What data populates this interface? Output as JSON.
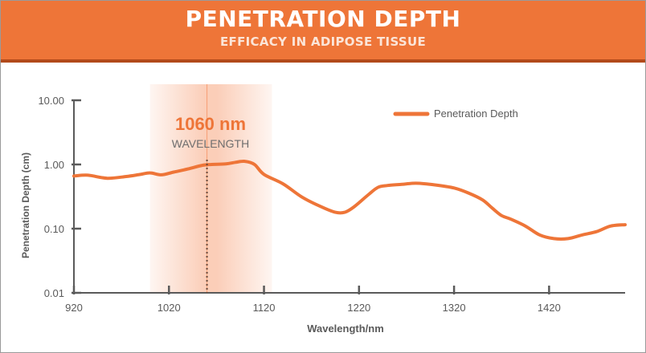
{
  "header": {
    "title": "PENETRATION DEPTH",
    "subtitle": "EFFICACY IN ADIPOSE TISSUE"
  },
  "colors": {
    "banner": "#ee7538",
    "banner_shadow": "#b24a1a",
    "series": "#ee7538",
    "highlight": "#f58a57",
    "axis": "#5a5a5a",
    "tick_text": "#5a5a5a",
    "marker_line": "#6a4a3a"
  },
  "chart_data": {
    "type": "line",
    "title": "PENETRATION DEPTH",
    "subtitle": "EFFICACY IN ADIPOSE TISSUE",
    "xlabel": "Wavelength/nm",
    "ylabel": "Penetration Depth (cm)",
    "y_scale": "log",
    "xlim": [
      920,
      1500
    ],
    "ylim": [
      0.01,
      10
    ],
    "x_ticks": [
      920,
      1020,
      1120,
      1220,
      1320,
      1420
    ],
    "x_tick_labels": [
      "920",
      "1020",
      "1120",
      "1220",
      "1320",
      "1420"
    ],
    "y_ticks": [
      0.01,
      0.1,
      1,
      10
    ],
    "y_tick_labels": [
      "0.01",
      "0.10",
      "1.00",
      "10.00"
    ],
    "grid": false,
    "legend": "top-right",
    "series": [
      {
        "name": "Penetration Depth",
        "x": [
          920,
          935,
          955,
          975,
          990,
          1000,
          1012,
          1025,
          1040,
          1055,
          1065,
          1080,
          1090,
          1100,
          1110,
          1120,
          1140,
          1160,
          1180,
          1195,
          1205,
          1215,
          1230,
          1240,
          1250,
          1265,
          1280,
          1300,
          1320,
          1335,
          1350,
          1360,
          1370,
          1380,
          1395,
          1410,
          1425,
          1440,
          1455,
          1470,
          1485,
          1500
        ],
        "y": [
          0.66,
          0.68,
          0.61,
          0.65,
          0.7,
          0.74,
          0.69,
          0.76,
          0.85,
          0.97,
          1.0,
          1.02,
          1.08,
          1.12,
          1.0,
          0.7,
          0.5,
          0.31,
          0.22,
          0.18,
          0.18,
          0.22,
          0.34,
          0.44,
          0.47,
          0.49,
          0.51,
          0.48,
          0.43,
          0.36,
          0.28,
          0.21,
          0.16,
          0.14,
          0.11,
          0.08,
          0.07,
          0.07,
          0.08,
          0.09,
          0.11,
          0.115
        ]
      }
    ],
    "highlight": {
      "center": 1060,
      "from": 1000,
      "to": 1120,
      "value_label": "1060 nm",
      "caption": "WAVELENGTH"
    }
  }
}
